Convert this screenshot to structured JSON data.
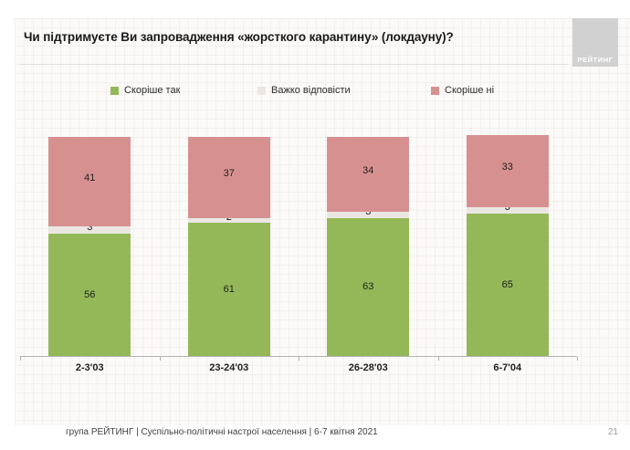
{
  "slide": {
    "title": "Чи підтримуєте Ви запровадження «жорсткого карантину» (локдауну)?",
    "logo_text": "РЕЙТИНГ"
  },
  "footer": {
    "source_line": "група РЕЙТИНГ | Суспільно-політичні настрої населення | 6-7 квітня 2021",
    "page_number": "21"
  },
  "chart_data": {
    "type": "bar",
    "stacked": true,
    "title": "Чи підтримуєте Ви запровадження «жорсткого карантину» (локдауну)?",
    "categories": [
      "2-3'03",
      "23-24'03",
      "26-28'03",
      "6-7'04"
    ],
    "series": [
      {
        "name": "Скоріше так",
        "color": "#94b857",
        "values": [
          56,
          61,
          63,
          65
        ]
      },
      {
        "name": "Важко відповісти",
        "color": "#eae7e3",
        "values": [
          3,
          2,
          3,
          3
        ]
      },
      {
        "name": "Скоріше ні",
        "color": "#d79090",
        "values": [
          41,
          37,
          34,
          33
        ]
      }
    ],
    "ylim": [
      0,
      100
    ],
    "legend_position": "top",
    "grid": false,
    "axis_color": "#b3b3b3",
    "label_color": "#1f1f1f"
  }
}
